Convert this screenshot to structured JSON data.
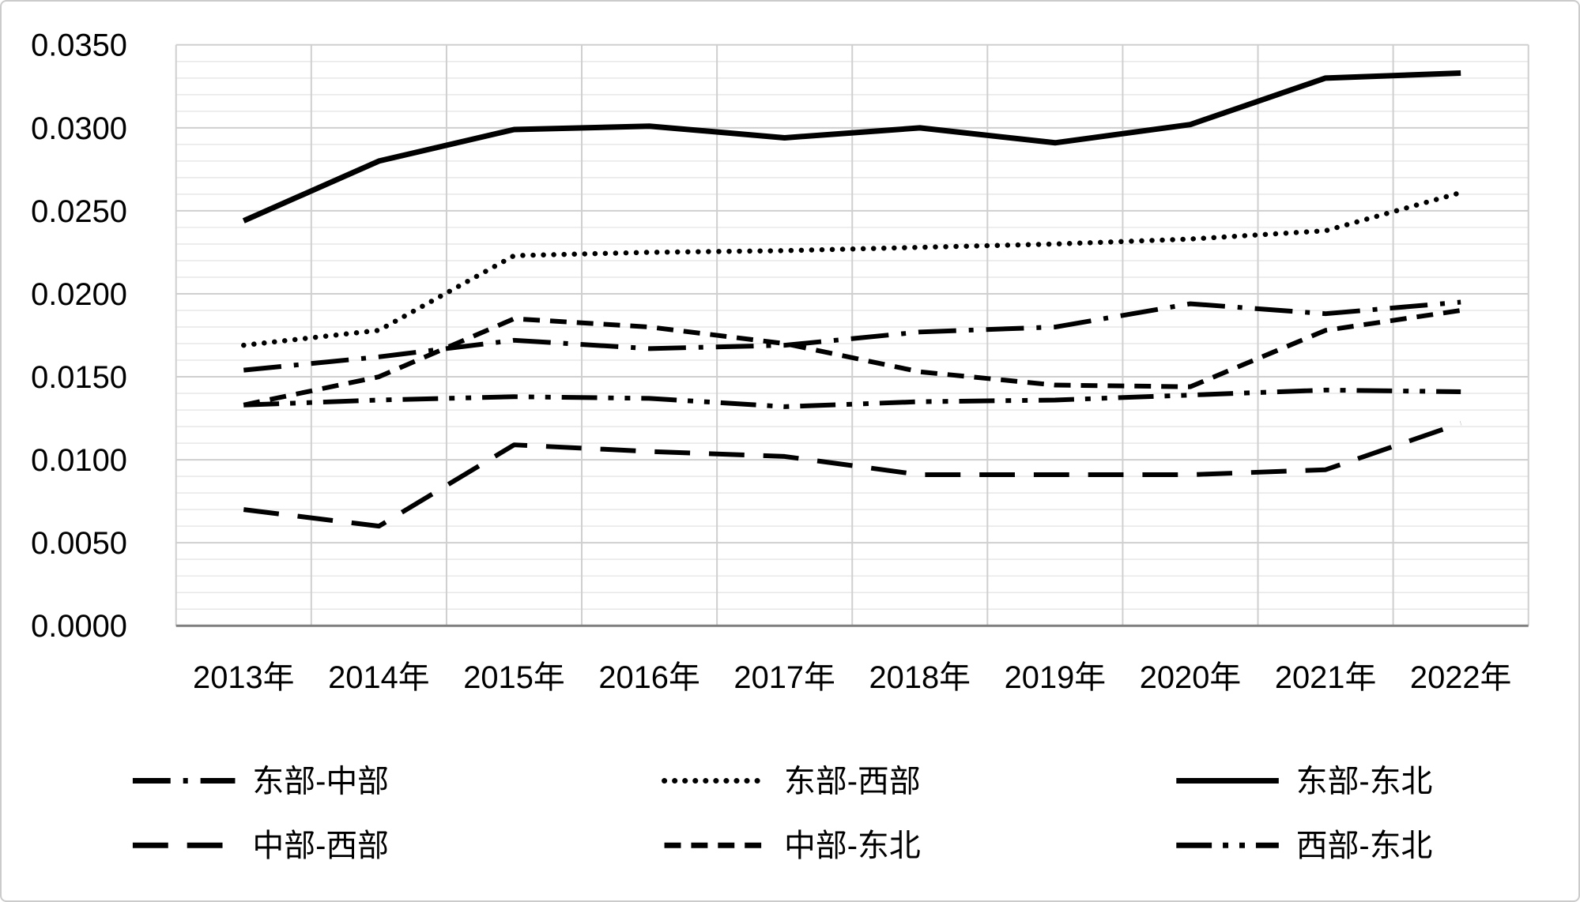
{
  "chart_data": {
    "type": "line",
    "title": "",
    "xlabel": "",
    "ylabel": "",
    "line_color": "#000000",
    "grid": {
      "horizontal_minor": true,
      "vertical": true,
      "legend_position": "bottom"
    },
    "categories": [
      "2013年",
      "2014年",
      "2015年",
      "2016年",
      "2017年",
      "2018年",
      "2019年",
      "2020年",
      "2021年",
      "2022年"
    ],
    "y_axis": {
      "min": 0.0,
      "max": 0.035,
      "major_step": 0.005,
      "minor_step": 0.001,
      "tick_labels": [
        "0.0350",
        "0.0300",
        "0.0250",
        "0.0200",
        "0.0150",
        "0.0100",
        "0.0050",
        "0.0000"
      ]
    },
    "series": [
      {
        "name": "东部-中部",
        "style": "dash-dot",
        "values": [
          0.0154,
          0.0162,
          0.0172,
          0.0167,
          0.0169,
          0.0177,
          0.018,
          0.0194,
          0.0188,
          0.0195
        ]
      },
      {
        "name": "东部-西部",
        "style": "dotted",
        "values": [
          0.0169,
          0.0178,
          0.0223,
          0.0225,
          0.0226,
          0.0228,
          0.023,
          0.0233,
          0.0238,
          0.0261
        ]
      },
      {
        "name": "东部-东北",
        "style": "solid",
        "values": [
          0.0244,
          0.028,
          0.0299,
          0.0301,
          0.0294,
          0.03,
          0.0291,
          0.0302,
          0.033,
          0.0333
        ]
      },
      {
        "name": "中部-西部",
        "style": "long-dash",
        "values": [
          0.007,
          0.006,
          0.0109,
          0.0105,
          0.0102,
          0.0091,
          0.0091,
          0.0091,
          0.0094,
          0.0122
        ]
      },
      {
        "name": "中部-东北",
        "style": "short-dash",
        "values": [
          0.0133,
          0.015,
          0.0185,
          0.018,
          0.017,
          0.0153,
          0.0145,
          0.0144,
          0.0178,
          0.019
        ]
      },
      {
        "name": "西部-东北",
        "style": "dash-dot-dot",
        "values": [
          0.0133,
          0.0136,
          0.0138,
          0.0137,
          0.0132,
          0.0135,
          0.0136,
          0.0139,
          0.0142,
          0.0141
        ]
      }
    ],
    "legend_rows": [
      [
        0,
        1,
        2
      ],
      [
        3,
        4,
        5
      ]
    ]
  }
}
